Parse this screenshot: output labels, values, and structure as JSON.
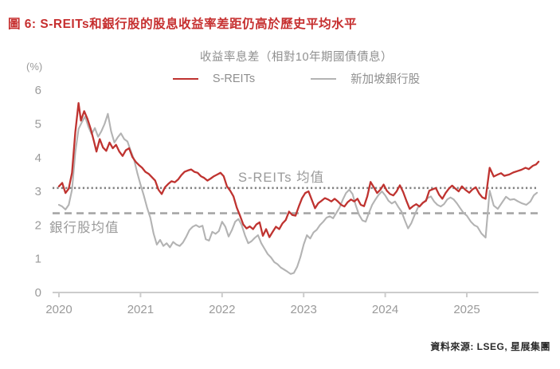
{
  "title": "圖 6: S-REITs和銀行股的股息收益率差距仍高於歷史平均水平",
  "title_color": "#c62f2f",
  "source": "資料來源: LSEG, 星展集團",
  "chart_data": {
    "type": "line",
    "subtitle": "收益率息差（相對10年期國債債息）",
    "y_unit": "(%)",
    "ylim": [
      0,
      6
    ],
    "yticks": [
      0,
      1,
      2,
      3,
      4,
      5,
      6
    ],
    "xticks": [
      2020,
      2021,
      2022,
      2023,
      2024,
      2025
    ],
    "xlim": [
      2020,
      2025.9
    ],
    "grid": false,
    "legend_position": "top-center",
    "legend": [
      {
        "label": "S-REITs",
        "color": "#bf3330"
      },
      {
        "label": "新加坡銀行股",
        "color": "#b3b3b3"
      }
    ],
    "mean_lines": [
      {
        "label": "S-REITs 均值",
        "value": 3.1,
        "style": "dotted",
        "color": "#7f7f7f"
      },
      {
        "label": "銀行股均值",
        "value": 2.35,
        "style": "dashed",
        "color": "#a6a6a6"
      }
    ],
    "series": [
      {
        "name": "S-REITs",
        "color": "#bf3330",
        "width": 2.3,
        "points": [
          [
            2020.0,
            3.15
          ],
          [
            2020.04,
            3.25
          ],
          [
            2020.08,
            2.95
          ],
          [
            2020.12,
            3.08
          ],
          [
            2020.16,
            3.55
          ],
          [
            2020.2,
            4.75
          ],
          [
            2020.24,
            5.62
          ],
          [
            2020.27,
            5.1
          ],
          [
            2020.31,
            5.38
          ],
          [
            2020.35,
            5.15
          ],
          [
            2020.39,
            4.85
          ],
          [
            2020.43,
            4.48
          ],
          [
            2020.46,
            4.18
          ],
          [
            2020.5,
            4.55
          ],
          [
            2020.54,
            4.3
          ],
          [
            2020.58,
            4.2
          ],
          [
            2020.62,
            4.45
          ],
          [
            2020.66,
            4.28
          ],
          [
            2020.7,
            4.38
          ],
          [
            2020.74,
            4.18
          ],
          [
            2020.78,
            4.05
          ],
          [
            2020.82,
            4.22
          ],
          [
            2020.86,
            4.28
          ],
          [
            2020.9,
            4.02
          ],
          [
            2020.94,
            3.88
          ],
          [
            2020.98,
            3.78
          ],
          [
            2021.02,
            3.7
          ],
          [
            2021.06,
            3.58
          ],
          [
            2021.1,
            3.52
          ],
          [
            2021.14,
            3.42
          ],
          [
            2021.18,
            3.32
          ],
          [
            2021.22,
            3.05
          ],
          [
            2021.26,
            2.92
          ],
          [
            2021.3,
            3.12
          ],
          [
            2021.34,
            3.22
          ],
          [
            2021.38,
            3.3
          ],
          [
            2021.42,
            3.27
          ],
          [
            2021.46,
            3.35
          ],
          [
            2021.5,
            3.48
          ],
          [
            2021.54,
            3.58
          ],
          [
            2021.58,
            3.62
          ],
          [
            2021.62,
            3.65
          ],
          [
            2021.66,
            3.58
          ],
          [
            2021.7,
            3.55
          ],
          [
            2021.74,
            3.45
          ],
          [
            2021.78,
            3.4
          ],
          [
            2021.82,
            3.32
          ],
          [
            2021.86,
            3.38
          ],
          [
            2021.9,
            3.45
          ],
          [
            2021.94,
            3.5
          ],
          [
            2021.98,
            3.55
          ],
          [
            2022.02,
            3.45
          ],
          [
            2022.06,
            3.15
          ],
          [
            2022.1,
            3.02
          ],
          [
            2022.14,
            2.85
          ],
          [
            2022.18,
            2.52
          ],
          [
            2022.22,
            2.28
          ],
          [
            2022.26,
            2.02
          ],
          [
            2022.3,
            1.9
          ],
          [
            2022.34,
            1.96
          ],
          [
            2022.38,
            1.88
          ],
          [
            2022.42,
            2.02
          ],
          [
            2022.46,
            2.08
          ],
          [
            2022.5,
            1.68
          ],
          [
            2022.54,
            1.88
          ],
          [
            2022.58,
            1.64
          ],
          [
            2022.62,
            1.8
          ],
          [
            2022.66,
            1.95
          ],
          [
            2022.7,
            1.88
          ],
          [
            2022.74,
            2.05
          ],
          [
            2022.78,
            2.15
          ],
          [
            2022.82,
            2.4
          ],
          [
            2022.86,
            2.3
          ],
          [
            2022.9,
            2.28
          ],
          [
            2022.94,
            2.55
          ],
          [
            2022.98,
            2.8
          ],
          [
            2023.02,
            2.95
          ],
          [
            2023.06,
            3.0
          ],
          [
            2023.1,
            2.75
          ],
          [
            2023.14,
            2.5
          ],
          [
            2023.18,
            2.65
          ],
          [
            2023.22,
            2.72
          ],
          [
            2023.26,
            2.8
          ],
          [
            2023.3,
            2.76
          ],
          [
            2023.34,
            2.7
          ],
          [
            2023.38,
            2.78
          ],
          [
            2023.42,
            2.7
          ],
          [
            2023.46,
            2.6
          ],
          [
            2023.5,
            2.55
          ],
          [
            2023.54,
            2.68
          ],
          [
            2023.58,
            2.76
          ],
          [
            2023.62,
            2.7
          ],
          [
            2023.66,
            2.78
          ],
          [
            2023.7,
            2.6
          ],
          [
            2023.74,
            2.56
          ],
          [
            2023.78,
            2.85
          ],
          [
            2023.82,
            3.28
          ],
          [
            2023.86,
            3.12
          ],
          [
            2023.9,
            2.95
          ],
          [
            2023.94,
            3.05
          ],
          [
            2023.98,
            3.2
          ],
          [
            2024.02,
            3.02
          ],
          [
            2024.06,
            2.92
          ],
          [
            2024.1,
            2.88
          ],
          [
            2024.14,
            3.0
          ],
          [
            2024.18,
            3.18
          ],
          [
            2024.22,
            2.98
          ],
          [
            2024.26,
            2.72
          ],
          [
            2024.3,
            2.48
          ],
          [
            2024.34,
            2.56
          ],
          [
            2024.38,
            2.62
          ],
          [
            2024.42,
            2.55
          ],
          [
            2024.46,
            2.66
          ],
          [
            2024.5,
            2.72
          ],
          [
            2024.54,
            3.02
          ],
          [
            2024.58,
            3.06
          ],
          [
            2024.62,
            3.1
          ],
          [
            2024.66,
            2.9
          ],
          [
            2024.7,
            2.78
          ],
          [
            2024.74,
            2.95
          ],
          [
            2024.78,
            3.08
          ],
          [
            2024.82,
            3.17
          ],
          [
            2024.86,
            3.08
          ],
          [
            2024.9,
            3.0
          ],
          [
            2024.94,
            3.15
          ],
          [
            2024.98,
            3.05
          ],
          [
            2025.03,
            2.96
          ],
          [
            2025.07,
            3.06
          ],
          [
            2025.11,
            3.12
          ],
          [
            2025.15,
            2.94
          ],
          [
            2025.19,
            2.82
          ],
          [
            2025.23,
            2.78
          ],
          [
            2025.28,
            3.7
          ],
          [
            2025.33,
            3.44
          ],
          [
            2025.38,
            3.5
          ],
          [
            2025.42,
            3.54
          ],
          [
            2025.46,
            3.46
          ],
          [
            2025.52,
            3.5
          ],
          [
            2025.57,
            3.56
          ],
          [
            2025.62,
            3.6
          ],
          [
            2025.67,
            3.64
          ],
          [
            2025.72,
            3.7
          ],
          [
            2025.76,
            3.66
          ],
          [
            2025.81,
            3.76
          ],
          [
            2025.85,
            3.8
          ],
          [
            2025.88,
            3.88
          ]
        ]
      },
      {
        "name": "新加坡銀行股",
        "color": "#b3b3b3",
        "width": 2.1,
        "points": [
          [
            2020.0,
            2.6
          ],
          [
            2020.04,
            2.55
          ],
          [
            2020.08,
            2.46
          ],
          [
            2020.12,
            2.6
          ],
          [
            2020.16,
            3.05
          ],
          [
            2020.2,
            4.15
          ],
          [
            2020.24,
            4.85
          ],
          [
            2020.28,
            5.05
          ],
          [
            2020.32,
            5.22
          ],
          [
            2020.36,
            4.92
          ],
          [
            2020.4,
            4.7
          ],
          [
            2020.44,
            4.88
          ],
          [
            2020.48,
            4.62
          ],
          [
            2020.52,
            4.78
          ],
          [
            2020.56,
            5.0
          ],
          [
            2020.6,
            5.3
          ],
          [
            2020.64,
            4.78
          ],
          [
            2020.68,
            4.45
          ],
          [
            2020.72,
            4.6
          ],
          [
            2020.76,
            4.72
          ],
          [
            2020.8,
            4.55
          ],
          [
            2020.84,
            4.48
          ],
          [
            2020.88,
            4.2
          ],
          [
            2020.92,
            3.95
          ],
          [
            2020.96,
            3.55
          ],
          [
            2021.0,
            3.2
          ],
          [
            2021.04,
            2.88
          ],
          [
            2021.08,
            2.52
          ],
          [
            2021.12,
            2.22
          ],
          [
            2021.16,
            1.75
          ],
          [
            2021.2,
            1.42
          ],
          [
            2021.24,
            1.56
          ],
          [
            2021.28,
            1.38
          ],
          [
            2021.32,
            1.46
          ],
          [
            2021.36,
            1.34
          ],
          [
            2021.4,
            1.5
          ],
          [
            2021.44,
            1.42
          ],
          [
            2021.48,
            1.38
          ],
          [
            2021.52,
            1.48
          ],
          [
            2021.56,
            1.65
          ],
          [
            2021.6,
            1.85
          ],
          [
            2021.64,
            1.95
          ],
          [
            2021.68,
            2.0
          ],
          [
            2021.72,
            1.94
          ],
          [
            2021.76,
            1.98
          ],
          [
            2021.8,
            1.58
          ],
          [
            2021.84,
            1.54
          ],
          [
            2021.88,
            1.8
          ],
          [
            2021.92,
            1.74
          ],
          [
            2021.96,
            1.82
          ],
          [
            2022.0,
            2.1
          ],
          [
            2022.04,
            1.95
          ],
          [
            2022.08,
            1.66
          ],
          [
            2022.12,
            1.85
          ],
          [
            2022.16,
            2.1
          ],
          [
            2022.2,
            2.18
          ],
          [
            2022.24,
            2.0
          ],
          [
            2022.28,
            1.7
          ],
          [
            2022.32,
            1.46
          ],
          [
            2022.36,
            1.52
          ],
          [
            2022.4,
            1.62
          ],
          [
            2022.44,
            1.7
          ],
          [
            2022.48,
            1.46
          ],
          [
            2022.52,
            1.3
          ],
          [
            2022.56,
            1.14
          ],
          [
            2022.6,
            1.04
          ],
          [
            2022.64,
            0.9
          ],
          [
            2022.68,
            0.84
          ],
          [
            2022.72,
            0.74
          ],
          [
            2022.76,
            0.68
          ],
          [
            2022.8,
            0.62
          ],
          [
            2022.84,
            0.55
          ],
          [
            2022.88,
            0.58
          ],
          [
            2022.92,
            0.76
          ],
          [
            2022.96,
            1.05
          ],
          [
            2023.0,
            1.42
          ],
          [
            2023.04,
            1.7
          ],
          [
            2023.08,
            1.6
          ],
          [
            2023.12,
            1.78
          ],
          [
            2023.16,
            1.86
          ],
          [
            2023.2,
            2.0
          ],
          [
            2023.24,
            2.1
          ],
          [
            2023.28,
            2.22
          ],
          [
            2023.32,
            2.26
          ],
          [
            2023.36,
            2.2
          ],
          [
            2023.4,
            2.36
          ],
          [
            2023.44,
            2.52
          ],
          [
            2023.48,
            2.76
          ],
          [
            2023.52,
            2.95
          ],
          [
            2023.56,
            3.05
          ],
          [
            2023.6,
            2.92
          ],
          [
            2023.64,
            2.58
          ],
          [
            2023.68,
            2.3
          ],
          [
            2023.72,
            2.14
          ],
          [
            2023.76,
            2.1
          ],
          [
            2023.8,
            2.36
          ],
          [
            2023.84,
            2.6
          ],
          [
            2023.88,
            2.76
          ],
          [
            2023.92,
            2.9
          ],
          [
            2023.96,
            3.0
          ],
          [
            2024.0,
            2.88
          ],
          [
            2024.04,
            2.72
          ],
          [
            2024.08,
            2.64
          ],
          [
            2024.12,
            2.7
          ],
          [
            2024.16,
            2.54
          ],
          [
            2024.2,
            2.4
          ],
          [
            2024.24,
            2.14
          ],
          [
            2024.28,
            1.9
          ],
          [
            2024.32,
            2.06
          ],
          [
            2024.36,
            2.3
          ],
          [
            2024.4,
            2.52
          ],
          [
            2024.44,
            2.6
          ],
          [
            2024.48,
            2.7
          ],
          [
            2024.52,
            2.8
          ],
          [
            2024.56,
            2.85
          ],
          [
            2024.6,
            2.7
          ],
          [
            2024.64,
            2.6
          ],
          [
            2024.68,
            2.55
          ],
          [
            2024.72,
            2.62
          ],
          [
            2024.76,
            2.76
          ],
          [
            2024.8,
            2.82
          ],
          [
            2024.84,
            2.76
          ],
          [
            2024.88,
            2.64
          ],
          [
            2024.92,
            2.5
          ],
          [
            2024.96,
            2.36
          ],
          [
            2025.0,
            2.28
          ],
          [
            2025.05,
            2.1
          ],
          [
            2025.09,
            2.0
          ],
          [
            2025.13,
            1.95
          ],
          [
            2025.18,
            1.75
          ],
          [
            2025.23,
            1.63
          ],
          [
            2025.28,
            3.02
          ],
          [
            2025.33,
            2.58
          ],
          [
            2025.38,
            2.48
          ],
          [
            2025.43,
            2.66
          ],
          [
            2025.48,
            2.84
          ],
          [
            2025.53,
            2.75
          ],
          [
            2025.58,
            2.77
          ],
          [
            2025.63,
            2.7
          ],
          [
            2025.68,
            2.64
          ],
          [
            2025.73,
            2.6
          ],
          [
            2025.78,
            2.7
          ],
          [
            2025.82,
            2.88
          ],
          [
            2025.86,
            2.96
          ]
        ]
      }
    ]
  }
}
